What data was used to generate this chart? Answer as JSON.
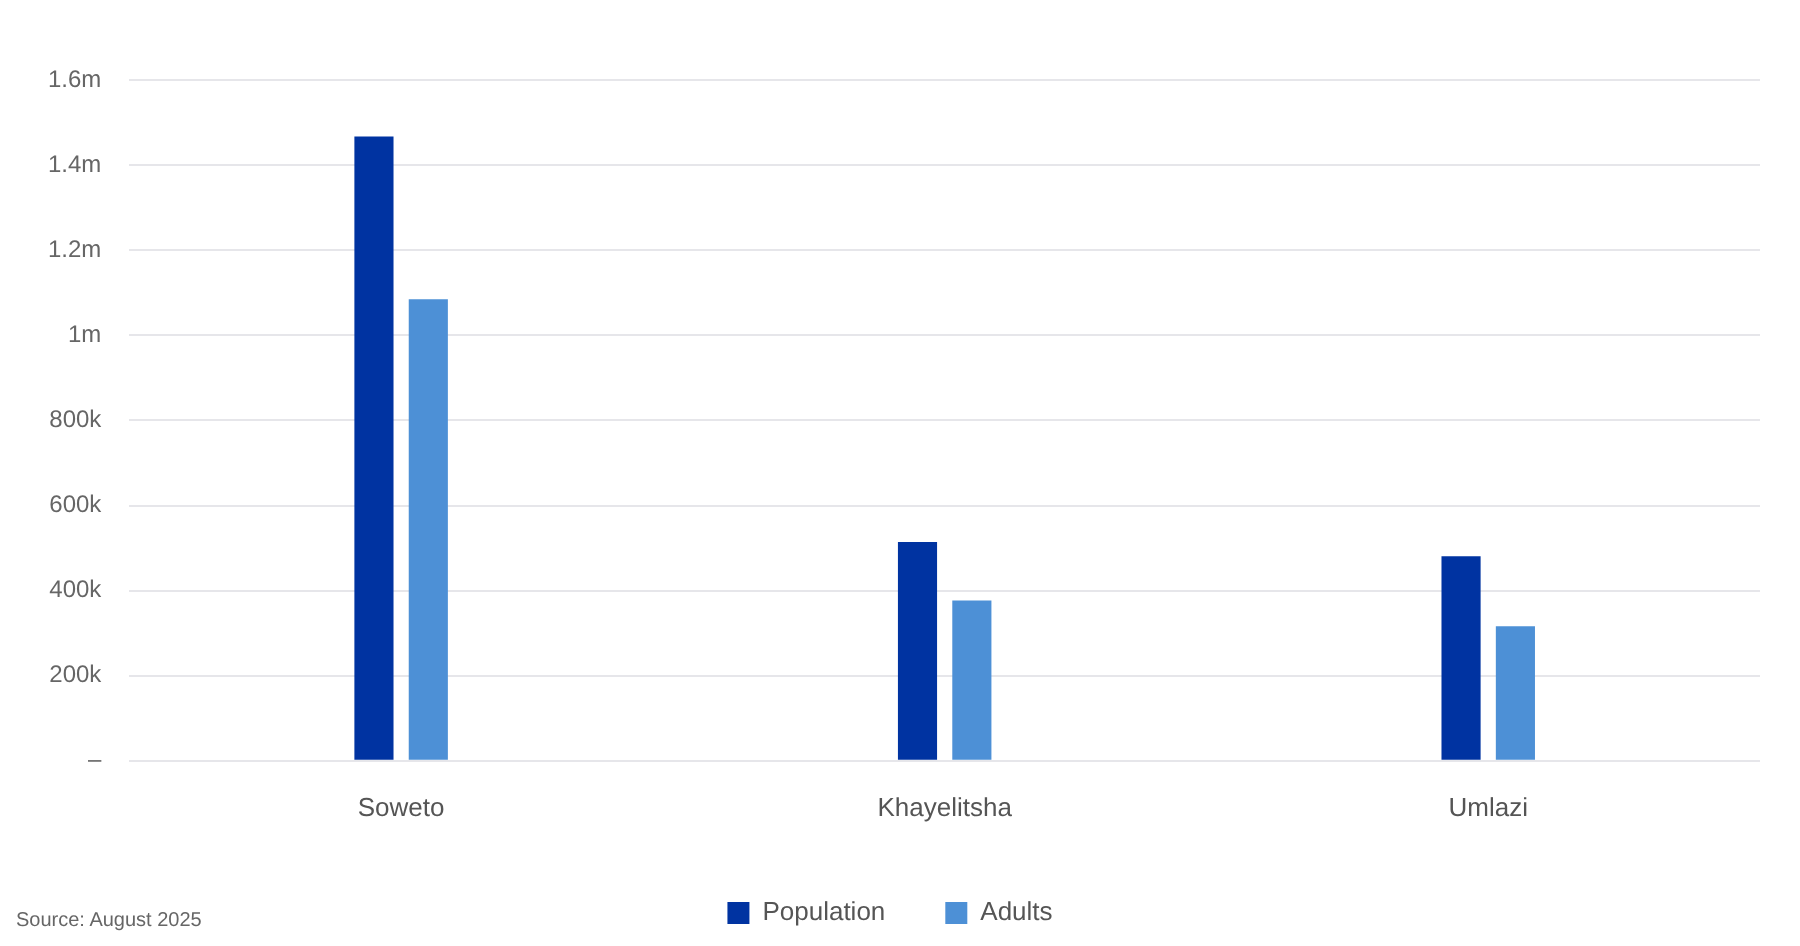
{
  "chart_data": {
    "type": "bar",
    "categories": [
      "Soweto",
      "Khayelitsha",
      "Umlazi"
    ],
    "series": [
      {
        "name": "Population",
        "color": "#0033a1",
        "values": [
          1467000,
          514000,
          481000
        ]
      },
      {
        "name": "Adults",
        "color": "#4d90d6",
        "values": [
          1085000,
          377000,
          316000
        ]
      }
    ],
    "ylim": [
      0,
      1600000
    ],
    "yticks": [
      {
        "value": 0,
        "label": "–"
      },
      {
        "value": 200000,
        "label": "200k"
      },
      {
        "value": 400000,
        "label": "400k"
      },
      {
        "value": 600000,
        "label": "600k"
      },
      {
        "value": 800000,
        "label": "800k"
      },
      {
        "value": 1000000,
        "label": "1m"
      },
      {
        "value": 1200000,
        "label": "1.2m"
      },
      {
        "value": 1400000,
        "label": "1.4m"
      },
      {
        "value": 1600000,
        "label": "1.6m"
      }
    ],
    "grid": "y",
    "legend": "bottom",
    "annotations": [
      "Source: August 2025"
    ]
  }
}
